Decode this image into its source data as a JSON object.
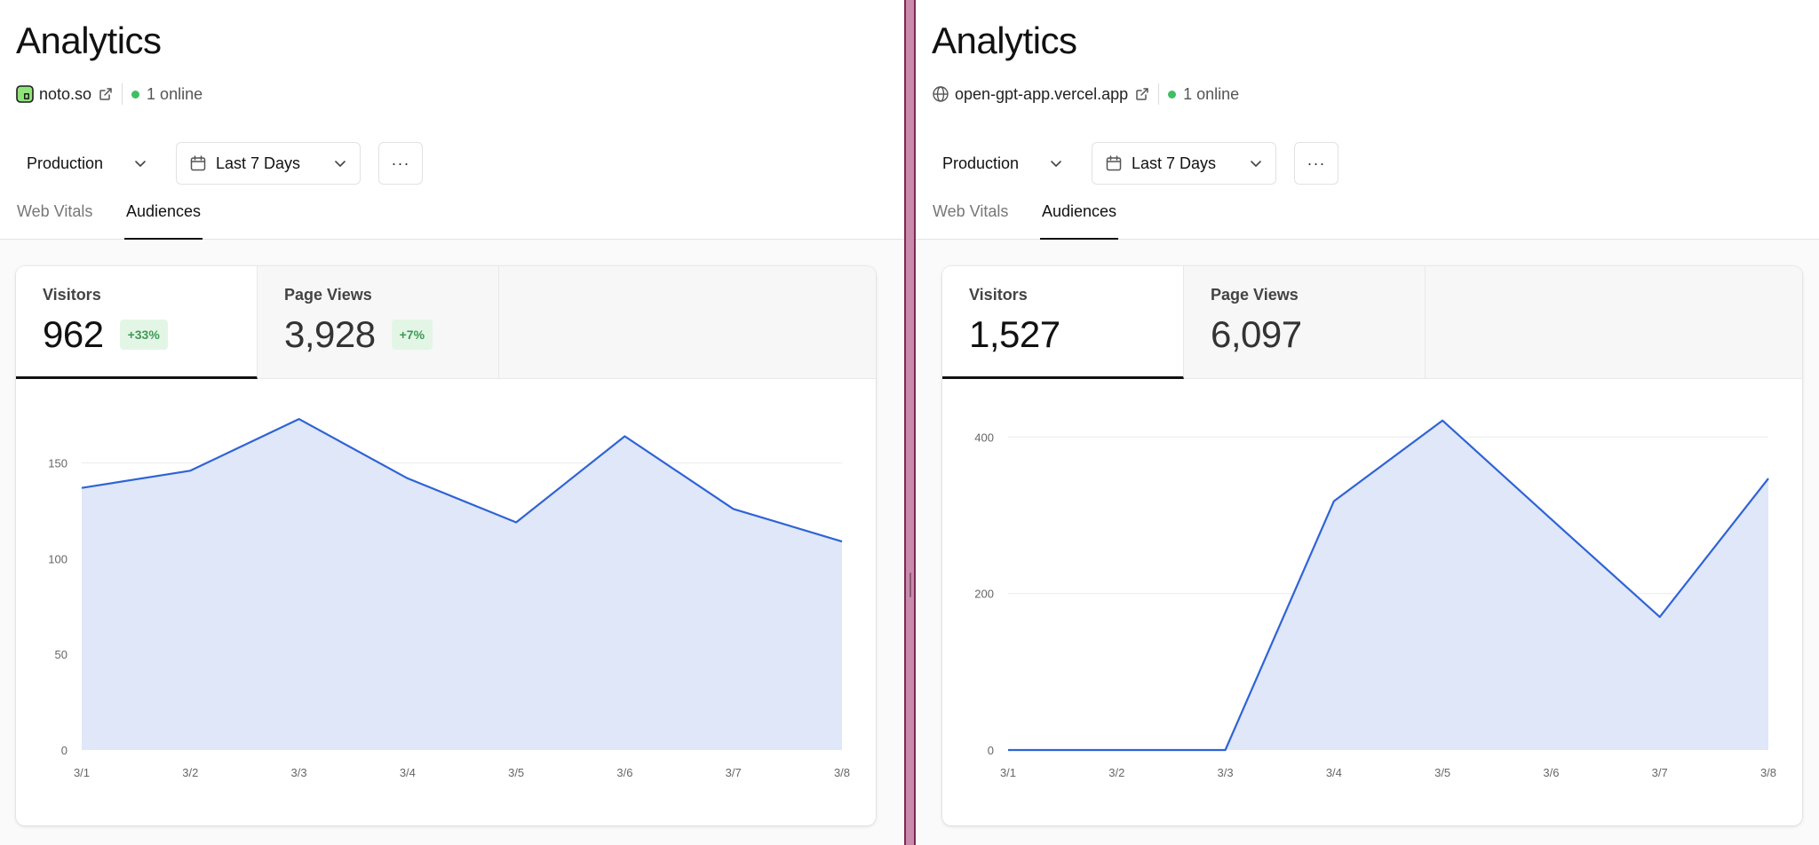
{
  "left": {
    "title": "Analytics",
    "site": "noto.so",
    "site_icon": "noto-logo-icon",
    "online": "1 online",
    "environment": "Production",
    "date_range": "Last 7 Days",
    "more_label": "···",
    "tabs": [
      "Web Vitals",
      "Audiences"
    ],
    "active_tab": "Audiences",
    "metrics": {
      "visitors": {
        "label": "Visitors",
        "value": "962",
        "change": "+33%"
      },
      "page_views": {
        "label": "Page Views",
        "value": "3,928",
        "change": "+7%"
      }
    },
    "colors": {
      "line": "#2f63d6",
      "area": "#dfe7f8",
      "online": "#3fbf62"
    },
    "chart_data": {
      "type": "area",
      "series": [
        {
          "name": "Visitors",
          "values": [
            137,
            146,
            173,
            142,
            119,
            164,
            126,
            109
          ]
        }
      ],
      "categories": [
        "3/1",
        "3/2",
        "3/3",
        "3/4",
        "3/5",
        "3/6",
        "3/7",
        "3/8"
      ],
      "y_ticks": [
        0,
        50,
        100,
        150
      ],
      "ylim": [
        0,
        180
      ],
      "grid": true
    }
  },
  "right": {
    "title": "Analytics",
    "site": "open-gpt-app.vercel.app",
    "site_icon": "globe-icon",
    "online": "1 online",
    "environment": "Production",
    "date_range": "Last 7 Days",
    "more_label": "···",
    "tabs": [
      "Web Vitals",
      "Audiences"
    ],
    "active_tab": "Audiences",
    "metrics": {
      "visitors": {
        "label": "Visitors",
        "value": "1,527"
      },
      "page_views": {
        "label": "Page Views",
        "value": "6,097"
      }
    },
    "colors": {
      "line": "#2f63d6",
      "area": "#dfe7f8",
      "online": "#3fbf62"
    },
    "chart_data": {
      "type": "area",
      "series": [
        {
          "name": "Visitors",
          "values": [
            0,
            0,
            0,
            318,
            421,
            295,
            170,
            347
          ]
        }
      ],
      "categories": [
        "3/1",
        "3/2",
        "3/3",
        "3/4",
        "3/5",
        "3/6",
        "3/7",
        "3/8"
      ],
      "y_ticks": [
        0,
        200,
        400
      ],
      "ylim": [
        0,
        440
      ],
      "grid": true
    }
  }
}
